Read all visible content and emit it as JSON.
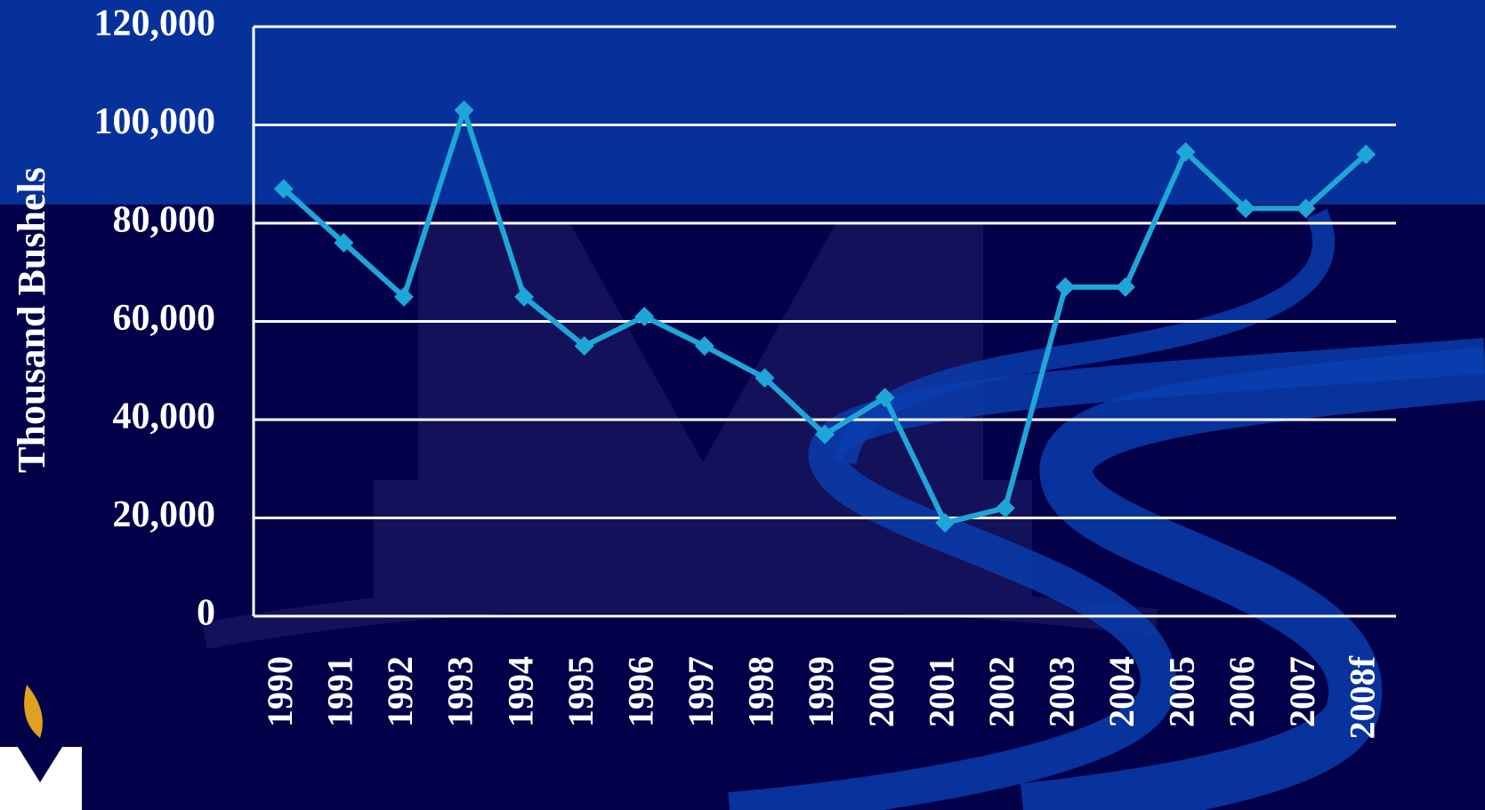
{
  "chart_data": {
    "type": "line",
    "y_label": "Thousand Bushels",
    "categories": [
      "1990",
      "1991",
      "1992",
      "1993",
      "1994",
      "1995",
      "1996",
      "1997",
      "1998",
      "1999",
      "2000",
      "2001",
      "2002",
      "2003",
      "2004",
      "2005",
      "2006",
      "2007",
      "2008f"
    ],
    "series": [
      {
        "color": "#1ea6d8",
        "values": [
          87000,
          76000,
          65000,
          103000,
          65000,
          55000,
          61000,
          55000,
          48500,
          37000,
          44500,
          19000,
          22000,
          67000,
          67000,
          94500,
          83000,
          83000,
          94000
        ]
      }
    ],
    "ylim": [
      0,
      120000
    ],
    "yticks": [
      0,
      {
        "value": 20000,
        "label": "20,000"
      },
      {
        "value": 40000,
        "label": "40,000"
      },
      {
        "value": 60000,
        "label": "60,000"
      },
      {
        "value": 80000,
        "label": "80,000"
      },
      {
        "value": 100000,
        "label": "100,000"
      },
      {
        "value": 120000,
        "label": "120,000"
      }
    ],
    "grid": true
  }
}
